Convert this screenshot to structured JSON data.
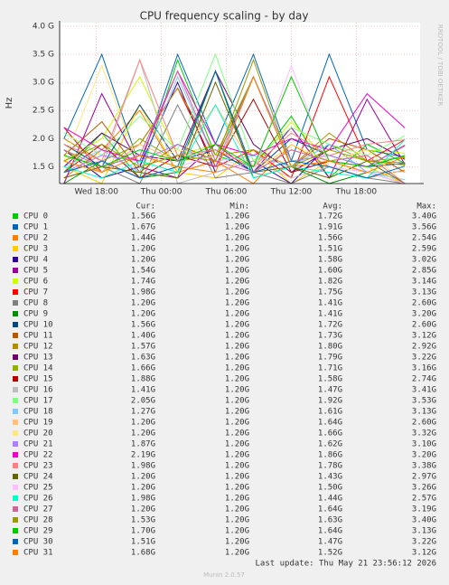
{
  "chart_data": {
    "type": "line",
    "title": "CPU frequency scaling - by day",
    "y_label": "Hz",
    "watermark": "RRDTOOL / TOBI OETIKER",
    "last_update": "Last update: Thu May 21 23:56:12 2026",
    "version": "Munin 2.0.57",
    "stat_headers": [
      "Cur:",
      "Min:",
      "Avg:",
      "Max:"
    ],
    "grid": true,
    "xlim": [
      14.6,
      47.9
    ],
    "xticks": [
      {
        "value": 18,
        "label": "Wed 18:00"
      },
      {
        "value": 24,
        "label": "Thu 00:00"
      },
      {
        "value": 30,
        "label": "Thu 06:00"
      },
      {
        "value": 36,
        "label": "Thu 12:00"
      },
      {
        "value": 42,
        "label": "Thu 18:00"
      }
    ],
    "ylim": [
      1200000000.0,
      4000000000.0
    ],
    "yticks": [
      {
        "value": 1500000000.0,
        "label": "1.5 G"
      },
      {
        "value": 2000000000.0,
        "label": "2.0 G"
      },
      {
        "value": 2500000000.0,
        "label": "2.5 G"
      },
      {
        "value": 3000000000.0,
        "label": "3.0 G"
      },
      {
        "value": 3500000000.0,
        "label": "3.5 G"
      },
      {
        "value": 4000000000.0,
        "label": "4.0 G"
      }
    ],
    "x": [
      15,
      18.5,
      22,
      25.5,
      29,
      32.5,
      36,
      39.5,
      43,
      46.5
    ],
    "series": [
      {
        "name": "CPU 0",
        "color": "#00CC00",
        "cur": "1.56G",
        "min": "1.20G",
        "avg": "1.72G",
        "max": "3.40G",
        "values": [
          1400000000.0,
          2100000000.0,
          1300000000.0,
          3400000000.0,
          1700000000.0,
          1500000000.0,
          2400000000.0,
          1300000000.0,
          1900000000.0,
          1560000000.0
        ]
      },
      {
        "name": "CPU 1",
        "color": "#0066B3",
        "cur": "1.67G",
        "min": "1.20G",
        "avg": "1.91G",
        "max": "3.56G",
        "values": [
          2000000000.0,
          3500000000.0,
          1500000000.0,
          3500000000.0,
          1900000000.0,
          3500000000.0,
          1600000000.0,
          3500000000.0,
          1800000000.0,
          1670000000.0
        ]
      },
      {
        "name": "CPU 2",
        "color": "#FF8000",
        "cur": "1.44G",
        "min": "1.20G",
        "avg": "1.56G",
        "max": "2.54G",
        "values": [
          1300000000.0,
          1800000000.0,
          2500000000.0,
          1400000000.0,
          1600000000.0,
          1200000000.0,
          1900000000.0,
          1500000000.0,
          1300000000.0,
          1440000000.0
        ]
      },
      {
        "name": "CPU 3",
        "color": "#FFCC00",
        "cur": "1.20G",
        "min": "1.20G",
        "avg": "1.51G",
        "max": "2.59G",
        "values": [
          1500000000.0,
          1200000000.0,
          2600000000.0,
          1400000000.0,
          1300000000.0,
          1800000000.0,
          1200000000.0,
          1600000000.0,
          1500000000.0,
          1200000000.0
        ]
      },
      {
        "name": "CPU 4",
        "color": "#330099",
        "cur": "1.20G",
        "min": "1.20G",
        "avg": "1.58G",
        "max": "3.02G",
        "values": [
          1800000000.0,
          1300000000.0,
          1500000000.0,
          3000000000.0,
          1400000000.0,
          1600000000.0,
          1200000000.0,
          1900000000.0,
          1400000000.0,
          1200000000.0
        ]
      },
      {
        "name": "CPU 5",
        "color": "#990099",
        "cur": "1.54G",
        "min": "1.20G",
        "avg": "1.60G",
        "max": "2.85G",
        "values": [
          1200000000.0,
          2800000000.0,
          1500000000.0,
          1300000000.0,
          1900000000.0,
          1400000000.0,
          2200000000.0,
          1300000000.0,
          2700000000.0,
          1540000000.0
        ]
      },
      {
        "name": "CPU 6",
        "color": "#CCFF00",
        "cur": "1.74G",
        "min": "1.20G",
        "avg": "1.82G",
        "max": "3.14G",
        "values": [
          1600000000.0,
          2000000000.0,
          3100000000.0,
          1700000000.0,
          1900000000.0,
          1500000000.0,
          2300000000.0,
          1600000000.0,
          1800000000.0,
          1740000000.0
        ]
      },
      {
        "name": "CPU 7",
        "color": "#FF0000",
        "cur": "1.98G",
        "min": "1.20G",
        "avg": "1.75G",
        "max": "3.13G",
        "values": [
          2200000000.0,
          1400000000.0,
          1900000000.0,
          2900000000.0,
          1500000000.0,
          1800000000.0,
          1300000000.0,
          3100000000.0,
          1600000000.0,
          1980000000.0
        ]
      },
      {
        "name": "CPU 8",
        "color": "#808080",
        "cur": "1.20G",
        "min": "1.20G",
        "avg": "1.41G",
        "max": "2.60G",
        "values": [
          1300000000.0,
          1500000000.0,
          1200000000.0,
          2600000000.0,
          1300000000.0,
          1400000000.0,
          1200000000.0,
          1500000000.0,
          1300000000.0,
          1200000000.0
        ]
      },
      {
        "name": "CPU 9",
        "color": "#008F00",
        "cur": "1.20G",
        "min": "1.20G",
        "avg": "1.41G",
        "max": "3.20G",
        "values": [
          1200000000.0,
          1600000000.0,
          1300000000.0,
          1400000000.0,
          3200000000.0,
          1300000000.0,
          1500000000.0,
          1200000000.0,
          1400000000.0,
          1200000000.0
        ]
      },
      {
        "name": "CPU 10",
        "color": "#00487D",
        "cur": "1.56G",
        "min": "1.20G",
        "avg": "1.72G",
        "max": "2.60G",
        "values": [
          1900000000.0,
          1500000000.0,
          2600000000.0,
          1600000000.0,
          1800000000.0,
          1400000000.0,
          2000000000.0,
          1700000000.0,
          1500000000.0,
          1560000000.0
        ]
      },
      {
        "name": "CPU 11",
        "color": "#B35A00",
        "cur": "1.40G",
        "min": "1.20G",
        "avg": "1.73G",
        "max": "3.12G",
        "values": [
          1700000000.0,
          2300000000.0,
          1400000000.0,
          1900000000.0,
          1600000000.0,
          3100000000.0,
          1500000000.0,
          2000000000.0,
          1800000000.0,
          1400000000.0
        ]
      },
      {
        "name": "CPU 12",
        "color": "#B38F00",
        "cur": "1.57G",
        "min": "1.20G",
        "avg": "1.80G",
        "max": "2.92G",
        "values": [
          2000000000.0,
          1600000000.0,
          1900000000.0,
          2900000000.0,
          1700000000.0,
          1800000000.0,
          1500000000.0,
          2100000000.0,
          1600000000.0,
          1570000000.0
        ]
      },
      {
        "name": "CPU 13",
        "color": "#6B006B",
        "cur": "1.63G",
        "min": "1.20G",
        "avg": "1.79G",
        "max": "3.22G",
        "values": [
          1500000000.0,
          2100000000.0,
          1700000000.0,
          1600000000.0,
          3200000000.0,
          1900000000.0,
          1400000000.0,
          1800000000.0,
          2000000000.0,
          1630000000.0
        ]
      },
      {
        "name": "CPU 14",
        "color": "#8FB300",
        "cur": "1.66G",
        "min": "1.20G",
        "avg": "1.71G",
        "max": "3.16G",
        "values": [
          1800000000.0,
          1400000000.0,
          2000000000.0,
          1600000000.0,
          1700000000.0,
          3100000000.0,
          1500000000.0,
          1900000000.0,
          1600000000.0,
          1660000000.0
        ]
      },
      {
        "name": "CPU 15",
        "color": "#B30000",
        "cur": "1.88G",
        "min": "1.20G",
        "avg": "1.58G",
        "max": "2.74G",
        "values": [
          1400000000.0,
          1900000000.0,
          1300000000.0,
          1700000000.0,
          1500000000.0,
          2700000000.0,
          1400000000.0,
          1600000000.0,
          1500000000.0,
          1880000000.0
        ]
      },
      {
        "name": "CPU 16",
        "color": "#BEBEBE",
        "cur": "1.41G",
        "min": "1.20G",
        "avg": "1.47G",
        "max": "3.41G",
        "values": [
          1300000000.0,
          1500000000.0,
          3400000000.0,
          1200000000.0,
          1400000000.0,
          1600000000.0,
          1300000000.0,
          1500000000.0,
          1400000000.0,
          1410000000.0
        ]
      },
      {
        "name": "CPU 17",
        "color": "#80FF80",
        "cur": "2.05G",
        "min": "1.20G",
        "avg": "1.92G",
        "max": "3.53G",
        "values": [
          2100000000.0,
          1700000000.0,
          2400000000.0,
          1800000000.0,
          3500000000.0,
          1600000000.0,
          2200000000.0,
          1900000000.0,
          1700000000.0,
          2050000000.0
        ]
      },
      {
        "name": "CPU 18",
        "color": "#80C9FF",
        "cur": "1.27G",
        "min": "1.20G",
        "avg": "1.61G",
        "max": "3.13G",
        "values": [
          1500000000.0,
          1800000000.0,
          1400000000.0,
          3100000000.0,
          1600000000.0,
          1700000000.0,
          1500000000.0,
          1900000000.0,
          1400000000.0,
          1270000000.0
        ]
      },
      {
        "name": "CPU 19",
        "color": "#FFC080",
        "cur": "1.20G",
        "min": "1.20G",
        "avg": "1.64G",
        "max": "2.60G",
        "values": [
          1700000000.0,
          1400000000.0,
          1900000000.0,
          1600000000.0,
          2600000000.0,
          1500000000.0,
          1800000000.0,
          1600000000.0,
          1400000000.0,
          1200000000.0
        ]
      },
      {
        "name": "CPU 20",
        "color": "#FFE680",
        "cur": "1.20G",
        "min": "1.20G",
        "avg": "1.66G",
        "max": "3.32G",
        "values": [
          1600000000.0,
          3300000000.0,
          1500000000.0,
          1800000000.0,
          1700000000.0,
          1400000000.0,
          1900000000.0,
          1600000000.0,
          1800000000.0,
          1200000000.0
        ]
      },
      {
        "name": "CPU 21",
        "color": "#AA80FF",
        "cur": "1.87G",
        "min": "1.20G",
        "avg": "1.62G",
        "max": "3.10G",
        "values": [
          1400000000.0,
          1700000000.0,
          1600000000.0,
          1900000000.0,
          1500000000.0,
          3100000000.0,
          1600000000.0,
          1700000000.0,
          1500000000.0,
          1870000000.0
        ]
      },
      {
        "name": "CPU 22",
        "color": "#EE00CC",
        "cur": "2.19G",
        "min": "1.20G",
        "avg": "1.86G",
        "max": "3.20G",
        "values": [
          2200000000.0,
          1800000000.0,
          1600000000.0,
          3200000000.0,
          1900000000.0,
          1700000000.0,
          2000000000.0,
          1800000000.0,
          2800000000.0,
          2190000000.0
        ]
      },
      {
        "name": "CPU 23",
        "color": "#FF8080",
        "cur": "1.98G",
        "min": "1.20G",
        "avg": "1.78G",
        "max": "3.38G",
        "values": [
          1900000000.0,
          1600000000.0,
          3400000000.0,
          1700000000.0,
          1800000000.0,
          1500000000.0,
          2100000000.0,
          1700000000.0,
          1900000000.0,
          1980000000.0
        ]
      },
      {
        "name": "CPU 24",
        "color": "#666600",
        "cur": "1.20G",
        "min": "1.20G",
        "avg": "1.43G",
        "max": "2.97G",
        "values": [
          1300000000.0,
          1500000000.0,
          1400000000.0,
          1300000000.0,
          3000000000.0,
          1400000000.0,
          1500000000.0,
          1300000000.0,
          1600000000.0,
          1200000000.0
        ]
      },
      {
        "name": "CPU 25",
        "color": "#FFBFFF",
        "cur": "1.20G",
        "min": "1.20G",
        "avg": "1.50G",
        "max": "3.26G",
        "values": [
          1400000000.0,
          1600000000.0,
          1300000000.0,
          1500000000.0,
          1700000000.0,
          1400000000.0,
          3300000000.0,
          1500000000.0,
          1400000000.0,
          1200000000.0
        ]
      },
      {
        "name": "CPU 26",
        "color": "#00FFCC",
        "cur": "1.98G",
        "min": "1.20G",
        "avg": "1.44G",
        "max": "2.57G",
        "values": [
          1500000000.0,
          1300000000.0,
          1600000000.0,
          1400000000.0,
          2600000000.0,
          1300000000.0,
          1500000000.0,
          1400000000.0,
          1300000000.0,
          1980000000.0
        ]
      },
      {
        "name": "CPU 27",
        "color": "#CC6699",
        "cur": "1.20G",
        "min": "1.20G",
        "avg": "1.64G",
        "max": "3.19G",
        "values": [
          1800000000.0,
          1500000000.0,
          1700000000.0,
          3200000000.0,
          1600000000.0,
          1400000000.0,
          1800000000.0,
          1600000000.0,
          1700000000.0,
          1200000000.0
        ]
      },
      {
        "name": "CPU 28",
        "color": "#999900",
        "cur": "1.53G",
        "min": "1.20G",
        "avg": "1.63G",
        "max": "3.40G",
        "values": [
          1600000000.0,
          1900000000.0,
          1500000000.0,
          1700000000.0,
          1600000000.0,
          3400000000.0,
          1500000000.0,
          1800000000.0,
          1600000000.0,
          1530000000.0
        ]
      },
      {
        "name": "CPU 29",
        "color": "#00CC00",
        "cur": "1.70G",
        "min": "1.20G",
        "avg": "1.64G",
        "max": "3.13G",
        "values": [
          1700000000.0,
          1500000000.0,
          1800000000.0,
          1600000000.0,
          1900000000.0,
          1500000000.0,
          3100000000.0,
          1600000000.0,
          1500000000.0,
          1700000000.0
        ]
      },
      {
        "name": "CPU 30",
        "color": "#0066B3",
        "cur": "1.51G",
        "min": "1.20G",
        "avg": "1.47G",
        "max": "3.22G",
        "values": [
          1400000000.0,
          1600000000.0,
          1300000000.0,
          1500000000.0,
          3200000000.0,
          1400000000.0,
          1600000000.0,
          1500000000.0,
          1300000000.0,
          1510000000.0
        ]
      },
      {
        "name": "CPU 31",
        "color": "#FF8000",
        "cur": "1.68G",
        "min": "1.20G",
        "avg": "1.52G",
        "max": "3.12G",
        "values": [
          1600000000.0,
          1400000000.0,
          1700000000.0,
          1500000000.0,
          1400000000.0,
          3100000000.0,
          1500000000.0,
          1600000000.0,
          1400000000.0,
          1680000000.0
        ]
      }
    ]
  }
}
